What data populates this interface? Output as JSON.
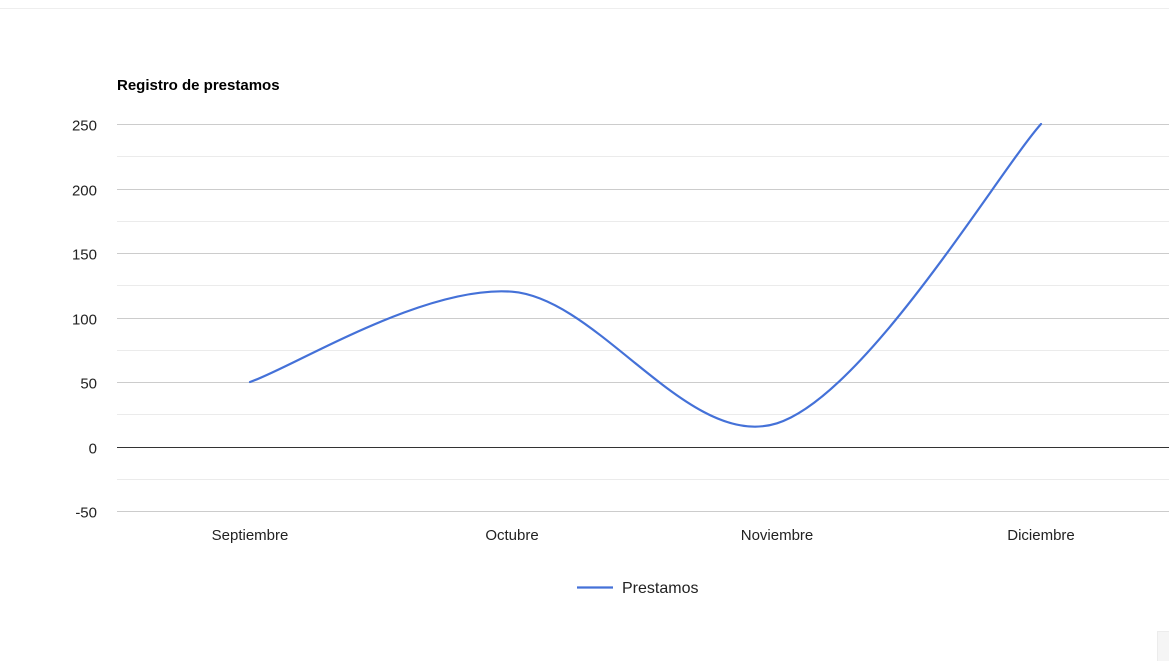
{
  "chart_data": {
    "type": "line",
    "title": "Registro de prestamos",
    "categories": [
      "Septiembre",
      "Octubre",
      "Noviembre",
      "Diciembre"
    ],
    "series": [
      {
        "name": "Prestamos",
        "values": [
          50,
          120,
          18,
          250
        ]
      }
    ],
    "ylim": [
      -50,
      250
    ],
    "yticks": [
      "250",
      "200",
      "150",
      "100",
      "50",
      "0",
      "-50"
    ],
    "ytick_values": [
      250,
      200,
      150,
      100,
      50,
      0,
      -50
    ],
    "minor_grid_values": [
      225,
      175,
      125,
      75,
      25,
      -25
    ],
    "grid": true,
    "smooth": true,
    "legend_position": "bottom",
    "colors": {
      "line": "#4471d8",
      "grid": "#cccccc",
      "minor_grid": "#ebebeb",
      "baseline": "#333333",
      "text": "#222222"
    }
  }
}
